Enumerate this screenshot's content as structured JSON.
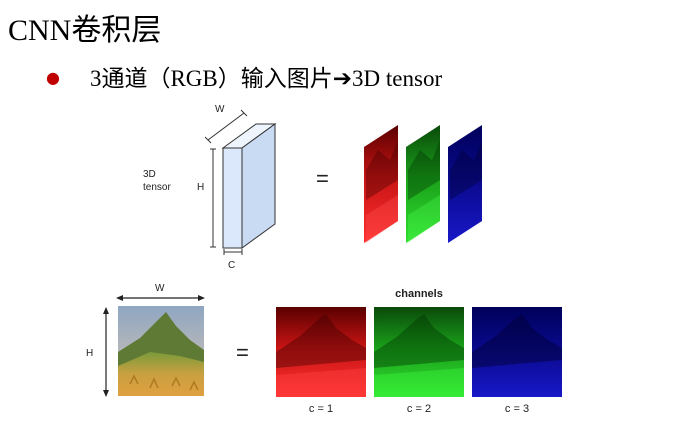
{
  "slide": {
    "title": "CNN卷积层",
    "bullet": "3通道（RGB）输入图片",
    "bullet_arrow": "➔",
    "bullet_suffix": "3D tensor"
  },
  "top_diagram": {
    "w_label": "W",
    "h_label": "H",
    "c_label": "C",
    "tensor_label_line1": "3D",
    "tensor_label_line2": "tensor",
    "equals": "="
  },
  "bottom_diagram": {
    "w_label": "W",
    "h_label": "H",
    "equals": "=",
    "channels_title": "channels",
    "channel_labels": [
      "c = 1",
      "c = 2",
      "c = 3"
    ]
  },
  "colors": {
    "bullet": "#c00000",
    "red_channel": "#d01818",
    "green_channel": "#18b018",
    "blue_channel": "#1010a8",
    "tensor_face": "#dbe8fb"
  }
}
